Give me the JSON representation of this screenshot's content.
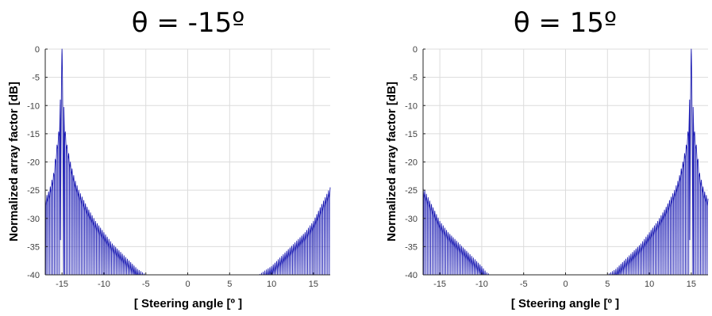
{
  "chart_data": [
    {
      "type": "line",
      "title": "θ = -15º",
      "xlabel": "[ Steering angle [º ]",
      "ylabel": "Normalized array factor [dB]",
      "xlim": [
        -17,
        17
      ],
      "ylim": [
        -40,
        0
      ],
      "xticks": [
        -15,
        -10,
        -5,
        0,
        5,
        10,
        15
      ],
      "yticks": [
        0,
        -5,
        -10,
        -15,
        -20,
        -25,
        -30,
        -35,
        -40
      ],
      "grid": true,
      "line_color": "#1f1fb4",
      "series": [
        {
          "peak_x": -15,
          "envelope": {
            "x": [
              -17,
              -16.5,
              -16,
              -15.6,
              -15.3,
              -15,
              -14.7,
              -14.4,
              -14,
              -13.5,
              -13,
              -12,
              -11,
              -10,
              -9,
              -8,
              -7,
              -6,
              -5.5,
              -5,
              0,
              5,
              8.5,
              9,
              10,
              11,
              12,
              13,
              14,
              15,
              16,
              16.5,
              17
            ],
            "y": [
              -26.5,
              -25,
              -22,
              -17,
              -13.5,
              0,
              -13.5,
              -17,
              -20,
              -23,
              -25,
              -28,
              -30.5,
              -32.5,
              -34.5,
              -36,
              -37.5,
              -39,
              -39.5,
              -40,
              -40,
              -40,
              -40,
              -39.5,
              -38.5,
              -37,
              -35.5,
              -34,
              -32.5,
              -30.5,
              -27.5,
              -26,
              -24.5
            ]
          }
        }
      ]
    },
    {
      "type": "line",
      "title": "θ = 15º",
      "xlabel": "[ Steering angle [º ]",
      "ylabel": "Normalized array factor [dB]",
      "xlim": [
        -17,
        17
      ],
      "ylim": [
        -40,
        0
      ],
      "xticks": [
        -15,
        -10,
        -5,
        0,
        5,
        10,
        15
      ],
      "yticks": [
        0,
        -5,
        -10,
        -15,
        -20,
        -25,
        -30,
        -35,
        -40
      ],
      "grid": true,
      "line_color": "#1f1fb4",
      "series": [
        {
          "peak_x": 15,
          "envelope": {
            "x": [
              -17,
              -16.5,
              -16,
              -15,
              -14,
              -13,
              -12,
              -11,
              -10,
              -9.5,
              -9,
              -8.5,
              -5,
              0,
              5,
              5.5,
              6,
              7,
              8,
              9,
              10,
              11,
              12,
              13,
              13.5,
              14,
              14.4,
              14.7,
              15,
              15.3,
              15.6,
              16,
              16.5,
              17
            ],
            "y": [
              -24.5,
              -26,
              -27.5,
              -30.5,
              -32.5,
              -34,
              -35.5,
              -37,
              -38.5,
              -39.5,
              -40,
              -40,
              -40,
              -40,
              -40,
              -39.5,
              -39,
              -37.5,
              -36,
              -34.5,
              -32.5,
              -30.5,
              -28,
              -25,
              -23,
              -20,
              -17,
              -13.5,
              0,
              -13.5,
              -17,
              -22,
              -25,
              -26.5
            ]
          }
        }
      ]
    }
  ]
}
